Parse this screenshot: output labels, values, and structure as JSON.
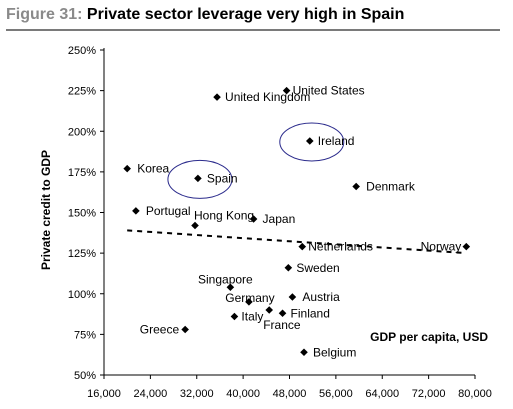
{
  "figure": {
    "number": "Figure 31:",
    "title": "Private sector leverage very high in Spain"
  },
  "chart_data": {
    "type": "scatter",
    "title": "Private sector leverage very high in Spain",
    "xlabel": "GDP per capita, USD",
    "ylabel": "Private credit to GDP",
    "xlim": [
      16000,
      80000
    ],
    "ylim": [
      50,
      250
    ],
    "xticks": [
      16000,
      24000,
      32000,
      40000,
      48000,
      56000,
      64000,
      72000,
      80000
    ],
    "xtick_labels": [
      "16,000",
      "24,000",
      "32,000",
      "40,000",
      "48,000",
      "56,000",
      "64,000",
      "72,000",
      "80,000"
    ],
    "yticks": [
      50,
      75,
      100,
      125,
      150,
      175,
      200,
      225,
      250
    ],
    "ytick_labels": [
      "50%",
      "75%",
      "100%",
      "125%",
      "150%",
      "175%",
      "200%",
      "225%",
      "250%"
    ],
    "grid": false,
    "marker_color": "#000000",
    "highlight_color": "#2b2b8c",
    "points": [
      {
        "label": "United States",
        "x": 47500,
        "y": 225
      },
      {
        "label": "United Kingdom",
        "x": 35500,
        "y": 221
      },
      {
        "label": "Ireland",
        "x": 51500,
        "y": 194
      },
      {
        "label": "Korea",
        "x": 20000,
        "y": 177
      },
      {
        "label": "Spain",
        "x": 32200,
        "y": 171
      },
      {
        "label": "Denmark",
        "x": 59500,
        "y": 166
      },
      {
        "label": "Portugal",
        "x": 21500,
        "y": 151
      },
      {
        "label": "Hong Kong",
        "x": 31700,
        "y": 142
      },
      {
        "label": "Japan",
        "x": 41800,
        "y": 146
      },
      {
        "label": "Netherlands",
        "x": 50200,
        "y": 129
      },
      {
        "label": "Norway",
        "x": 78500,
        "y": 129
      },
      {
        "label": "Sweden",
        "x": 47800,
        "y": 116
      },
      {
        "label": "Singapore",
        "x": 37800,
        "y": 104
      },
      {
        "label": "Austria",
        "x": 48500,
        "y": 98
      },
      {
        "label": "Germany",
        "x": 41000,
        "y": 95
      },
      {
        "label": "Finland",
        "x": 46800,
        "y": 88
      },
      {
        "label": "France",
        "x": 44500,
        "y": 90
      },
      {
        "label": "Italy",
        "x": 38500,
        "y": 86
      },
      {
        "label": "Greece",
        "x": 30000,
        "y": 78
      },
      {
        "label": "Belgium",
        "x": 50500,
        "y": 64
      }
    ],
    "trendline": {
      "style": "dashed",
      "from": [
        20000,
        139
      ],
      "to": [
        78500,
        125
      ]
    },
    "highlights": [
      "Ireland",
      "Spain"
    ]
  }
}
